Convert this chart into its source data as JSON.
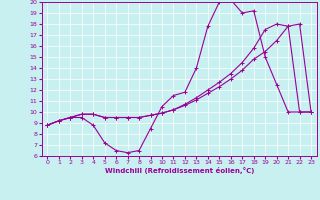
{
  "xlabel": "Windchill (Refroidissement éolien,°C)",
  "bg_color": "#c8f0f0",
  "line_color": "#990099",
  "grid_color": "#ffffff",
  "xlim": [
    -0.5,
    23.5
  ],
  "ylim": [
    6,
    20
  ],
  "yticks": [
    6,
    7,
    8,
    9,
    10,
    11,
    12,
    13,
    14,
    15,
    16,
    17,
    18,
    19,
    20
  ],
  "xticks": [
    0,
    1,
    2,
    3,
    4,
    5,
    6,
    7,
    8,
    9,
    10,
    11,
    12,
    13,
    14,
    15,
    16,
    17,
    18,
    19,
    20,
    21,
    22,
    23
  ],
  "curve1_x": [
    0,
    1,
    2,
    3,
    4,
    5,
    6,
    7,
    8,
    9,
    10,
    11,
    12,
    13,
    14,
    15,
    16,
    17,
    18,
    19,
    20,
    21,
    22,
    23
  ],
  "curve1_y": [
    8.8,
    9.2,
    9.5,
    9.5,
    8.8,
    7.2,
    6.5,
    6.3,
    6.5,
    8.5,
    10.5,
    11.5,
    11.8,
    14.0,
    17.8,
    20.0,
    20.2,
    19.0,
    19.2,
    15.0,
    12.5,
    10.0,
    10.0,
    10.0
  ],
  "curve2_x": [
    0,
    1,
    2,
    3,
    4,
    5,
    6,
    7,
    8,
    9,
    10,
    11,
    12,
    13,
    14,
    15,
    16,
    17,
    18,
    19,
    20,
    21,
    22,
    23
  ],
  "curve2_y": [
    8.8,
    9.2,
    9.5,
    9.8,
    9.8,
    9.5,
    9.5,
    9.5,
    9.5,
    9.7,
    9.9,
    10.2,
    10.7,
    11.3,
    12.0,
    12.7,
    13.5,
    14.5,
    15.8,
    17.5,
    18.0,
    17.8,
    10.0,
    10.0
  ],
  "curve3_x": [
    0,
    1,
    2,
    3,
    4,
    5,
    6,
    7,
    8,
    9,
    10,
    11,
    12,
    13,
    14,
    15,
    16,
    17,
    18,
    19,
    20,
    21,
    22,
    23
  ],
  "curve3_y": [
    8.8,
    9.2,
    9.5,
    9.8,
    9.8,
    9.5,
    9.5,
    9.5,
    9.5,
    9.7,
    9.9,
    10.2,
    10.6,
    11.1,
    11.7,
    12.3,
    13.0,
    13.8,
    14.8,
    15.5,
    16.5,
    17.8,
    18.0,
    10.0
  ]
}
